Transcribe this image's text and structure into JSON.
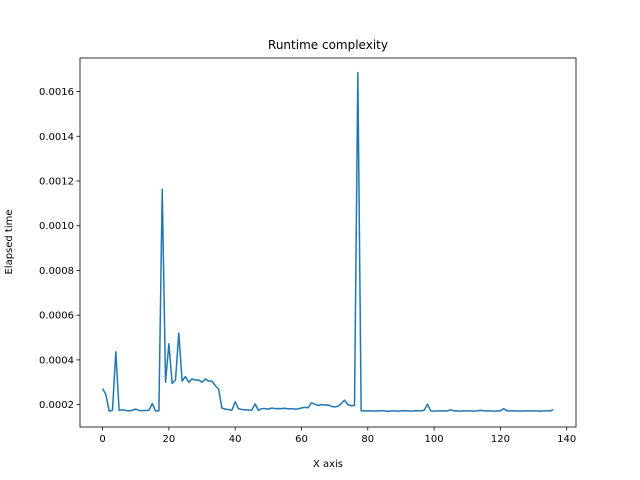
{
  "chart_data": {
    "type": "line",
    "title": "Runtime complexity",
    "xlabel": "X axis",
    "ylabel": "Elapsed time",
    "xlim": [
      -6.8,
      142.8
    ],
    "ylim": [
      0.0001,
      0.00175
    ],
    "xticks": [
      0,
      20,
      40,
      60,
      80,
      100,
      120,
      140
    ],
    "xtick_labels": [
      "0",
      "20",
      "40",
      "60",
      "80",
      "100",
      "120",
      "140"
    ],
    "yticks": [
      0.0002,
      0.0004,
      0.0006,
      0.0008,
      0.001,
      0.0012,
      0.0014,
      0.0016
    ],
    "ytick_labels": [
      "0.0002",
      "0.0004",
      "0.0006",
      "0.0008",
      "0.0010",
      "0.0012",
      "0.0014",
      "0.0016"
    ],
    "grid": false,
    "legend": null,
    "series": [
      {
        "color": "#1f77b4",
        "x": [
          0,
          1,
          2,
          3,
          4,
          5,
          6,
          7,
          8,
          9,
          10,
          11,
          12,
          13,
          14,
          15,
          16,
          17,
          18,
          19,
          20,
          21,
          22,
          23,
          24,
          25,
          26,
          27,
          28,
          29,
          30,
          31,
          32,
          33,
          34,
          35,
          36,
          37,
          38,
          39,
          40,
          41,
          42,
          43,
          44,
          45,
          46,
          47,
          48,
          49,
          50,
          51,
          52,
          53,
          54,
          55,
          56,
          57,
          58,
          59,
          60,
          61,
          62,
          63,
          64,
          65,
          66,
          67,
          68,
          69,
          70,
          71,
          72,
          73,
          74,
          75,
          76,
          77,
          78,
          79,
          80,
          81,
          82,
          83,
          84,
          85,
          86,
          87,
          88,
          89,
          90,
          91,
          92,
          93,
          94,
          95,
          96,
          97,
          98,
          99,
          100,
          101,
          102,
          103,
          104,
          105,
          106,
          107,
          108,
          109,
          110,
          111,
          112,
          113,
          114,
          115,
          116,
          117,
          118,
          119,
          120,
          121,
          122,
          123,
          124,
          125,
          126,
          127,
          128,
          129,
          130,
          131,
          132,
          133,
          134,
          135,
          136
        ],
        "y": [
          0.000272,
          0.000245,
          0.000171,
          0.000175,
          0.000436,
          0.000175,
          0.000177,
          0.000174,
          0.000172,
          0.000175,
          0.00018,
          0.000174,
          0.000173,
          0.000174,
          0.000175,
          0.000205,
          0.000172,
          0.000172,
          0.001163,
          0.0003,
          0.000472,
          0.000295,
          0.00031,
          0.00052,
          0.000305,
          0.000326,
          0.0003,
          0.000315,
          0.00031,
          0.00031,
          0.0003,
          0.000315,
          0.000305,
          0.000305,
          0.000285,
          0.00027,
          0.000185,
          0.00018,
          0.000178,
          0.000175,
          0.000213,
          0.000182,
          0.000178,
          0.000177,
          0.000176,
          0.000175,
          0.000203,
          0.000175,
          0.000182,
          0.000182,
          0.00018,
          0.000185,
          0.000182,
          0.000183,
          0.000182,
          0.000184,
          0.000181,
          0.000182,
          0.00018,
          0.000181,
          0.000185,
          0.000188,
          0.000186,
          0.000208,
          0.000202,
          0.000196,
          0.0002,
          0.000198,
          0.000199,
          0.000192,
          0.00019,
          0.000192,
          0.000205,
          0.00022,
          0.0002,
          0.000195,
          0.000196,
          0.001685,
          0.000172,
          0.000172,
          0.000172,
          0.000172,
          0.000171,
          0.000172,
          0.000173,
          0.000172,
          0.00017,
          0.000172,
          0.000172,
          0.000171,
          0.000172,
          0.000173,
          0.000172,
          0.000171,
          0.000172,
          0.000173,
          0.000172,
          0.000175,
          0.000202,
          0.000172,
          0.000171,
          0.000172,
          0.000172,
          0.000172,
          0.000172,
          0.000177,
          0.000172,
          0.000172,
          0.000171,
          0.000172,
          0.000172,
          0.000172,
          0.000171,
          0.000172,
          0.000175,
          0.000172,
          0.000172,
          0.000172,
          0.000171,
          0.000172,
          0.000172,
          0.000182,
          0.000172,
          0.000172,
          0.000172,
          0.000172,
          0.000171,
          0.000172,
          0.000172,
          0.000172,
          0.000172,
          0.000172,
          0.000171,
          0.000172,
          0.000172,
          0.000172,
          0.000178
        ]
      }
    ]
  }
}
